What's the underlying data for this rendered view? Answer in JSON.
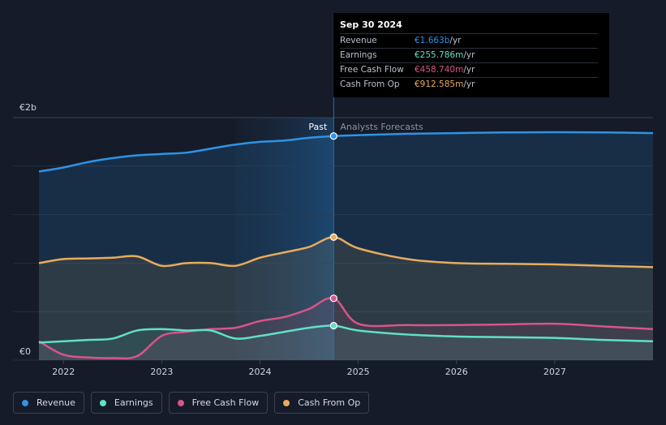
{
  "colors": {
    "revenue": "#2e93e6",
    "earnings": "#5fe0c7",
    "fcf": "#d9548a",
    "cfo": "#e8ac5c",
    "background": "#151b28"
  },
  "tooltip": {
    "date": "Sep 30 2024",
    "rows": [
      {
        "label": "Revenue",
        "value": "€1.663b",
        "unit": "/yr",
        "color": "#2e93e6"
      },
      {
        "label": "Earnings",
        "value": "€255.786m",
        "unit": "/yr",
        "color": "#5fe0c7"
      },
      {
        "label": "Free Cash Flow",
        "value": "€458.740m",
        "unit": "/yr",
        "color": "#d9548a"
      },
      {
        "label": "Cash From Op",
        "value": "€912.585m",
        "unit": "/yr",
        "color": "#e8ac5c"
      }
    ]
  },
  "legend": [
    {
      "label": "Revenue",
      "color": "#2e93e6"
    },
    {
      "label": "Earnings",
      "color": "#5fe0c7"
    },
    {
      "label": "Free Cash Flow",
      "color": "#d9548a"
    },
    {
      "label": "Cash From Op",
      "color": "#e8ac5c"
    }
  ],
  "chart_data": {
    "type": "area",
    "title": "",
    "unit": "EUR billions",
    "xlim": [
      2021.75,
      2028.0
    ],
    "ylim": [
      0,
      1.8
    ],
    "y_ticks": [
      {
        "value": 0,
        "label": "€0"
      },
      {
        "value": 1.8,
        "label": "€2b"
      }
    ],
    "x_ticks": [
      {
        "value": 2022,
        "label": "2022"
      },
      {
        "value": 2023,
        "label": "2023"
      },
      {
        "value": 2024,
        "label": "2024"
      },
      {
        "value": 2025,
        "label": "2025"
      },
      {
        "value": 2026,
        "label": "2026"
      },
      {
        "value": 2027,
        "label": "2027"
      }
    ],
    "divider": {
      "x": 2024.75,
      "past_label": "Past",
      "forecast_label": "Analysts Forecasts"
    },
    "highlight_range": [
      2023.75,
      2024.75
    ],
    "series": [
      {
        "name": "Revenue",
        "key": "revenue",
        "points": [
          [
            2021.75,
            1.4
          ],
          [
            2022.0,
            1.43
          ],
          [
            2022.25,
            1.47
          ],
          [
            2022.5,
            1.5
          ],
          [
            2022.75,
            1.52
          ],
          [
            2023.0,
            1.53
          ],
          [
            2023.25,
            1.54
          ],
          [
            2023.5,
            1.57
          ],
          [
            2023.75,
            1.6
          ],
          [
            2024.0,
            1.62
          ],
          [
            2024.25,
            1.63
          ],
          [
            2024.5,
            1.65
          ],
          [
            2024.75,
            1.663
          ],
          [
            2025.0,
            1.67
          ],
          [
            2025.5,
            1.68
          ],
          [
            2026.0,
            1.685
          ],
          [
            2026.5,
            1.69
          ],
          [
            2027.0,
            1.692
          ],
          [
            2027.5,
            1.69
          ],
          [
            2028.0,
            1.685
          ]
        ]
      },
      {
        "name": "Cash From Op",
        "key": "cfo",
        "points": [
          [
            2021.75,
            0.72
          ],
          [
            2022.0,
            0.75
          ],
          [
            2022.25,
            0.755
          ],
          [
            2022.5,
            0.76
          ],
          [
            2022.75,
            0.77
          ],
          [
            2023.0,
            0.7
          ],
          [
            2023.25,
            0.72
          ],
          [
            2023.5,
            0.72
          ],
          [
            2023.75,
            0.7
          ],
          [
            2024.0,
            0.76
          ],
          [
            2024.25,
            0.8
          ],
          [
            2024.5,
            0.84
          ],
          [
            2024.75,
            0.912585
          ],
          [
            2025.0,
            0.83
          ],
          [
            2025.5,
            0.75
          ],
          [
            2026.0,
            0.72
          ],
          [
            2026.5,
            0.715
          ],
          [
            2027.0,
            0.71
          ],
          [
            2027.5,
            0.7
          ],
          [
            2028.0,
            0.69
          ]
        ]
      },
      {
        "name": "Free Cash Flow",
        "key": "fcf",
        "points": [
          [
            2021.75,
            0.14
          ],
          [
            2022.0,
            0.04
          ],
          [
            2022.25,
            0.02
          ],
          [
            2022.5,
            0.015
          ],
          [
            2022.75,
            0.03
          ],
          [
            2023.0,
            0.18
          ],
          [
            2023.25,
            0.21
          ],
          [
            2023.5,
            0.23
          ],
          [
            2023.75,
            0.24
          ],
          [
            2024.0,
            0.29
          ],
          [
            2024.25,
            0.32
          ],
          [
            2024.5,
            0.38
          ],
          [
            2024.75,
            0.45874
          ],
          [
            2025.0,
            0.27
          ],
          [
            2025.5,
            0.26
          ],
          [
            2026.0,
            0.26
          ],
          [
            2026.5,
            0.265
          ],
          [
            2027.0,
            0.27
          ],
          [
            2027.5,
            0.25
          ],
          [
            2028.0,
            0.23
          ]
        ]
      },
      {
        "name": "Earnings",
        "key": "earnings",
        "points": [
          [
            2021.75,
            0.13
          ],
          [
            2022.0,
            0.14
          ],
          [
            2022.25,
            0.15
          ],
          [
            2022.5,
            0.16
          ],
          [
            2022.75,
            0.22
          ],
          [
            2023.0,
            0.23
          ],
          [
            2023.25,
            0.22
          ],
          [
            2023.5,
            0.22
          ],
          [
            2023.75,
            0.16
          ],
          [
            2024.0,
            0.18
          ],
          [
            2024.25,
            0.21
          ],
          [
            2024.5,
            0.24
          ],
          [
            2024.75,
            0.255786
          ],
          [
            2025.0,
            0.22
          ],
          [
            2025.5,
            0.19
          ],
          [
            2026.0,
            0.175
          ],
          [
            2026.5,
            0.17
          ],
          [
            2027.0,
            0.165
          ],
          [
            2027.5,
            0.15
          ],
          [
            2028.0,
            0.14
          ]
        ]
      }
    ]
  }
}
